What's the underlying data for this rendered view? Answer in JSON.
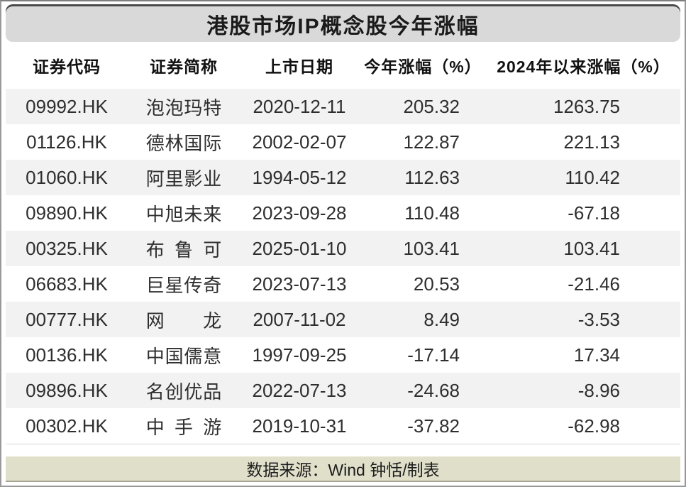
{
  "title": "港股市场IP概念股今年涨幅",
  "chart_data": {
    "type": "table",
    "title": "港股市场IP概念股今年涨幅",
    "columns": [
      "证券代码",
      "证券简称",
      "上市日期",
      "今年涨幅（%）",
      "2024年以来涨幅（%）"
    ],
    "rows": [
      {
        "code": "09992.HK",
        "name": "泡泡玛特",
        "date": "2020-12-11",
        "ytd_pct": 205.32,
        "since_2024_pct": 1263.75
      },
      {
        "code": "01126.HK",
        "name": "德林国际",
        "date": "2002-02-07",
        "ytd_pct": 122.87,
        "since_2024_pct": 221.13
      },
      {
        "code": "01060.HK",
        "name": "阿里影业",
        "date": "1994-05-12",
        "ytd_pct": 112.63,
        "since_2024_pct": 110.42
      },
      {
        "code": "09890.HK",
        "name": "中旭未来",
        "date": "2023-09-28",
        "ytd_pct": 110.48,
        "since_2024_pct": -67.18
      },
      {
        "code": "00325.HK",
        "name": "布鲁可",
        "date": "2025-01-10",
        "ytd_pct": 103.41,
        "since_2024_pct": 103.41
      },
      {
        "code": "06683.HK",
        "name": "巨星传奇",
        "date": "2023-07-13",
        "ytd_pct": 20.53,
        "since_2024_pct": -21.46
      },
      {
        "code": "00777.HK",
        "name": "网龙",
        "date": "2007-11-02",
        "ytd_pct": 8.49,
        "since_2024_pct": -3.53
      },
      {
        "code": "00136.HK",
        "name": "中国儒意",
        "date": "1997-09-25",
        "ytd_pct": -17.14,
        "since_2024_pct": 17.34
      },
      {
        "code": "09896.HK",
        "name": "名创优品",
        "date": "2022-07-13",
        "ytd_pct": -24.68,
        "since_2024_pct": -8.96
      },
      {
        "code": "00302.HK",
        "name": "中手游",
        "date": "2019-10-31",
        "ytd_pct": -37.82,
        "since_2024_pct": -62.98
      }
    ],
    "layout": {
      "row_striping": "odd-rows-gray",
      "value_alignment": "right"
    }
  },
  "footer": {
    "source": "数据来源：Wind 钟恬/制表"
  },
  "colors": {
    "banner_bg": "#d9d9d9",
    "row_alt_bg": "#f2f2f2",
    "footer_bg": "#e0dfca",
    "frame_border": "#999999",
    "text": "#2e2e2e"
  }
}
